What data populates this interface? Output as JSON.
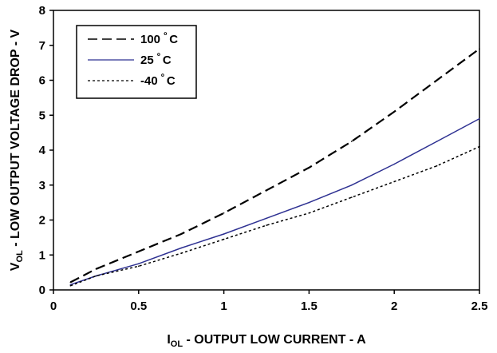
{
  "chart_data": {
    "type": "line",
    "title": "",
    "xlabel": {
      "main": "I",
      "sub": "OL",
      "rest": " - OUTPUT LOW CURRENT - A"
    },
    "ylabel": {
      "main": "V",
      "sub": "OL",
      "rest": " - LOW OUTPUT VOLTAGE DROP - V"
    },
    "xlim": [
      0,
      2.5
    ],
    "ylim": [
      0,
      8
    ],
    "x_ticks": [
      "0",
      "0.5",
      "1",
      "1.5",
      "2",
      "2.5"
    ],
    "y_ticks": [
      "0",
      "1",
      "2",
      "3",
      "4",
      "5",
      "6",
      "7",
      "8"
    ],
    "grid": false,
    "legend_position": "top-left",
    "series": [
      {
        "name": "100 º C",
        "legend": {
          "value": "100",
          "deg": "º",
          "unit": "C"
        },
        "style": "dashed",
        "color": "#000000",
        "x": [
          0.1,
          0.25,
          0.5,
          0.75,
          1.0,
          1.25,
          1.5,
          1.75,
          2.0,
          2.25,
          2.5
        ],
        "y": [
          0.22,
          0.6,
          1.1,
          1.6,
          2.2,
          2.85,
          3.5,
          4.25,
          5.1,
          6.0,
          6.9
        ]
      },
      {
        "name": "25º C",
        "legend": {
          "value": "25",
          "deg": "º",
          "unit": "C"
        },
        "style": "solid",
        "color": "#2e3192",
        "x": [
          0.1,
          0.25,
          0.5,
          0.75,
          1.0,
          1.25,
          1.5,
          1.75,
          2.0,
          2.25,
          2.5
        ],
        "y": [
          0.15,
          0.4,
          0.75,
          1.2,
          1.6,
          2.05,
          2.5,
          3.0,
          3.6,
          4.25,
          4.9
        ]
      },
      {
        "name": "-40 º C",
        "legend": {
          "value": "-40",
          "deg": "º",
          "unit": "C"
        },
        "style": "dotted",
        "color": "#000000",
        "x": [
          0.1,
          0.25,
          0.5,
          0.75,
          1.0,
          1.25,
          1.5,
          1.75,
          2.0,
          2.25,
          2.5
        ],
        "y": [
          0.12,
          0.4,
          0.68,
          1.05,
          1.45,
          1.85,
          2.2,
          2.65,
          3.1,
          3.55,
          4.1
        ]
      }
    ]
  }
}
